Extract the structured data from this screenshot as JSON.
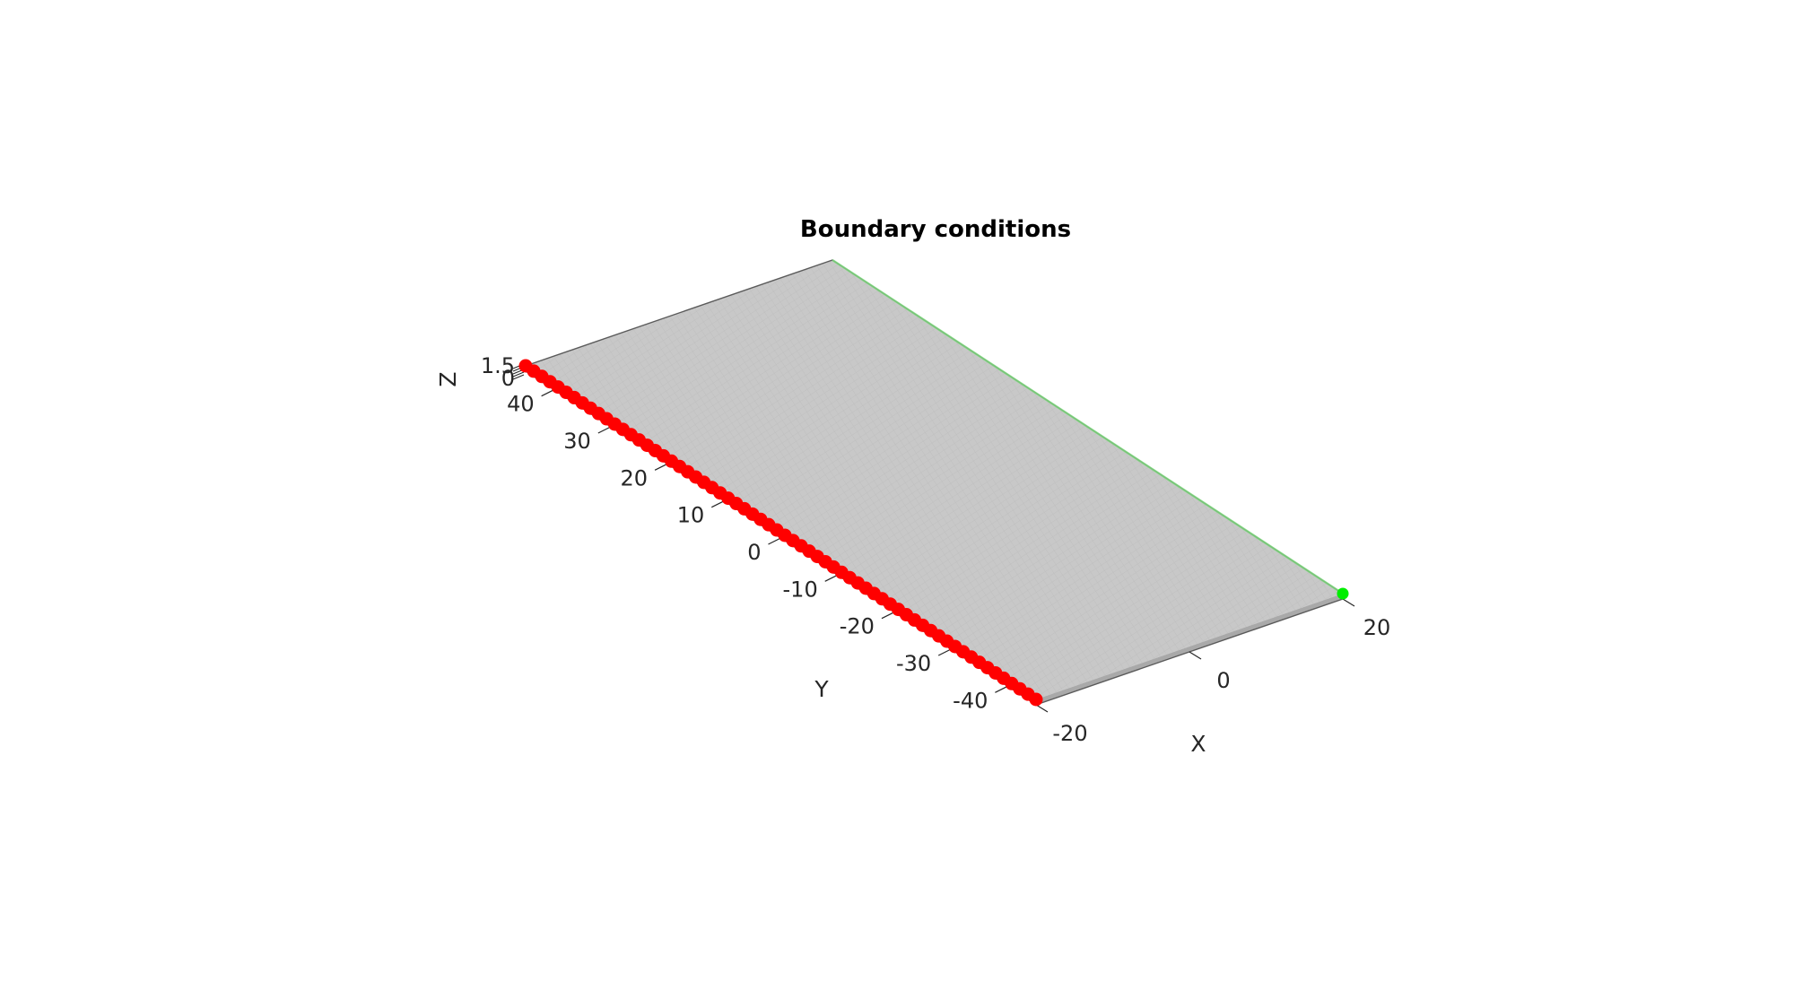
{
  "figure": {
    "title": "Boundary conditions"
  },
  "axes": {
    "x": {
      "label": "X",
      "ticks": [
        "-20",
        "0",
        "20"
      ]
    },
    "y": {
      "label": "Y",
      "ticks": [
        "-40",
        "-30",
        "-20",
        "-10",
        "0",
        "10",
        "20",
        "30",
        "40"
      ]
    },
    "z": {
      "label": "Z",
      "ticks": [
        "0",
        "1.5"
      ]
    }
  },
  "colors": {
    "plate_face": "#c8c8c8",
    "plate_edge": "#5a5a5a",
    "fixed_bc": "#ff0000",
    "load_bc": "#00ee00",
    "load_edge": "#7fdc7f"
  },
  "chart_data": {
    "type": "scatter",
    "title": "Boundary conditions",
    "xlabel": "X",
    "ylabel": "Y",
    "zlabel": "Z",
    "xlim": [
      -20,
      20
    ],
    "ylim": [
      -45,
      45
    ],
    "zlim": [
      0,
      1.5
    ],
    "plate": {
      "x": [
        -20,
        20
      ],
      "y": [
        -45,
        45
      ],
      "z": [
        0,
        1.5
      ]
    },
    "series": [
      {
        "color": "#ff0000",
        "x": -20,
        "y_from": -45,
        "y_to": 45,
        "z": 0,
        "count": 64
      },
      {
        "color": "#00ee00",
        "x": 20,
        "y": -45,
        "z": 0
      }
    ]
  }
}
